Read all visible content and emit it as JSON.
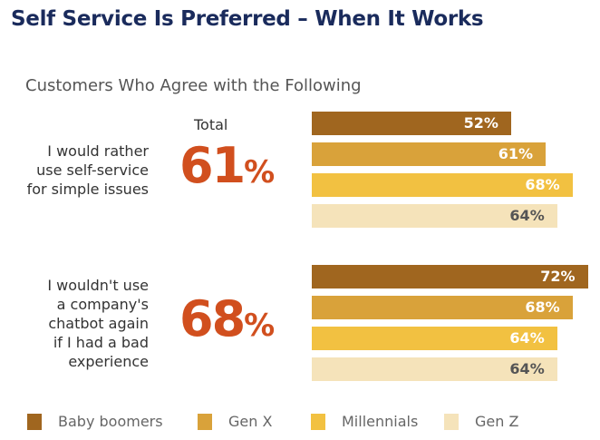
{
  "chart_data": {
    "type": "bar",
    "orientation": "horizontal",
    "title": "Self Service Is Preferred – When It Works",
    "subtitle": "Customers Who Agree with the Following",
    "total_header": "Total",
    "xlim": [
      0,
      100
    ],
    "grid": false,
    "legend_placement": "bottom",
    "categories": [
      {
        "label": "I would rather use self-service for simple issues",
        "lines": [
          "I would rather",
          "use self-service",
          "for simple issues"
        ],
        "total": 61
      },
      {
        "label": "I wouldn't use a company's chatbot again if I had a bad experience",
        "lines": [
          "I wouldn't use",
          "a company's",
          "chatbot again",
          "if I had a bad",
          "experience"
        ],
        "total": 68
      }
    ],
    "series": [
      {
        "name": "Baby boomers",
        "color": "#a0661f",
        "label_color": "#ffffff",
        "values": [
          52,
          72
        ]
      },
      {
        "name": "Gen X",
        "color": "#d9a23a",
        "label_color": "#ffffff",
        "values": [
          61,
          68
        ]
      },
      {
        "name": "Millennials",
        "color": "#f2c141",
        "label_color": "#ffffff",
        "values": [
          68,
          64
        ]
      },
      {
        "name": "Gen Z",
        "color": "#f5e3ba",
        "label_color": "#555555",
        "values": [
          64,
          64
        ]
      }
    ],
    "value_suffix": "%",
    "total_color": "#d14f1e",
    "title_color": "#1a2b5c"
  }
}
